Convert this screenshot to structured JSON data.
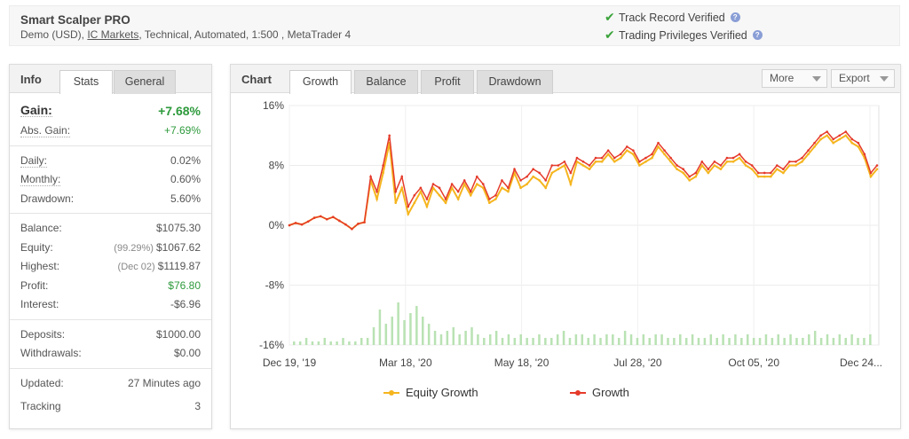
{
  "system": {
    "name": "Smart Scalper PRO",
    "meta_prefix": "Demo (USD), ",
    "broker": "IC Markets",
    "meta_suffix": ", Technical, Automated, 1:500 , MetaTrader 4"
  },
  "verification": {
    "track_record": "Track Record Verified",
    "trading_privileges": "Trading Privileges Verified",
    "help_glyph": "?"
  },
  "info_panel": {
    "title": "Info",
    "tabs": [
      "Stats",
      "General"
    ],
    "active_tab": "Stats",
    "stats": {
      "gain": {
        "label": "Gain:",
        "value": "+7.68%"
      },
      "abs_gain": {
        "label": "Abs. Gain:",
        "value": "+7.69%"
      },
      "daily": {
        "label": "Daily:",
        "value": "0.02%"
      },
      "monthly": {
        "label": "Monthly:",
        "value": "0.60%"
      },
      "drawdown": {
        "label": "Drawdown:",
        "value": "5.60%"
      },
      "balance": {
        "label": "Balance:",
        "value": "$1075.30"
      },
      "equity": {
        "label": "Equity:",
        "sub": "(99.29%)",
        "value": "$1067.62"
      },
      "highest": {
        "label": "Highest:",
        "sub": "(Dec 02)",
        "value": "$1119.87"
      },
      "profit": {
        "label": "Profit:",
        "value": "$76.80"
      },
      "interest": {
        "label": "Interest:",
        "value": "-$6.96"
      },
      "deposits": {
        "label": "Deposits:",
        "value": "$1000.00"
      },
      "withdrawals": {
        "label": "Withdrawals:",
        "value": "$0.00"
      },
      "updated": {
        "label": "Updated:",
        "value": "27 Minutes ago"
      },
      "tracking": {
        "label": "Tracking",
        "value": "3"
      }
    }
  },
  "chart_panel": {
    "title": "Chart",
    "tabs": [
      "Growth",
      "Balance",
      "Profit",
      "Drawdown"
    ],
    "active_tab": "Growth",
    "more_label": "More",
    "export_label": "Export"
  },
  "colors": {
    "equity": "#f5b51e",
    "growth": "#e53a2a",
    "bars": "#b9e2b3",
    "gain_green": "#2e9a3c"
  },
  "chart_data": {
    "type": "line",
    "x_tick_labels": [
      "Dec 19, '19",
      "Mar 18, '20",
      "May 18, '20",
      "Jul 28, '20",
      "Oct 05, '20",
      "Dec 24..."
    ],
    "y_tick_labels": [
      "16%",
      "8%",
      "0%",
      "-8%",
      "-16%"
    ],
    "ylim": [
      -16,
      16
    ],
    "grid": true,
    "legend_position": "bottom",
    "series": [
      {
        "name": "Equity Growth",
        "values": [
          0,
          0.3,
          0.1,
          0.5,
          1.0,
          1.2,
          0.8,
          1.1,
          0.6,
          0.1,
          -0.5,
          0.2,
          0.4,
          6.0,
          3.5,
          7.0,
          11.0,
          3.0,
          5.0,
          1.5,
          3.0,
          4.5,
          2.5,
          5.0,
          4.0,
          3.0,
          5.0,
          3.5,
          5.5,
          4.0,
          5.5,
          5.0,
          3.0,
          3.5,
          5.0,
          4.5,
          7.0,
          5.0,
          5.5,
          6.5,
          6.0,
          5.0,
          7.0,
          7.5,
          8.0,
          5.5,
          8.5,
          8.0,
          7.5,
          8.5,
          8.5,
          9.5,
          8.5,
          9.0,
          10.0,
          9.5,
          8.0,
          8.5,
          9.0,
          10.5,
          9.5,
          8.5,
          7.5,
          7.0,
          6.0,
          6.5,
          8.0,
          7.0,
          8.0,
          7.5,
          8.5,
          8.5,
          9.0,
          8.0,
          7.5,
          6.5,
          6.5,
          6.5,
          7.5,
          7.0,
          8.0,
          8.0,
          8.5,
          9.5,
          10.5,
          11.5,
          12.0,
          11.0,
          11.5,
          12.0,
          11.0,
          10.5,
          9.0,
          6.5,
          7.5
        ]
      },
      {
        "name": "Growth",
        "values": [
          0,
          0.3,
          0.1,
          0.5,
          1.0,
          1.2,
          0.8,
          1.1,
          0.6,
          0.1,
          -0.5,
          0.2,
          0.4,
          6.5,
          4.5,
          8.0,
          12.0,
          4.5,
          6.5,
          2.5,
          4.0,
          5.0,
          3.5,
          5.5,
          5.0,
          3.5,
          5.5,
          4.5,
          6.0,
          4.5,
          6.5,
          5.5,
          3.5,
          4.0,
          6.0,
          5.0,
          7.5,
          6.0,
          6.5,
          7.5,
          7.0,
          6.0,
          8.0,
          8.0,
          8.5,
          7.0,
          9.0,
          8.5,
          8.0,
          9.0,
          9.0,
          10.0,
          9.0,
          9.5,
          10.5,
          10.0,
          8.5,
          9.0,
          9.5,
          11.0,
          10.0,
          9.0,
          8.0,
          7.5,
          6.5,
          7.0,
          8.5,
          7.5,
          8.5,
          8.0,
          9.0,
          9.0,
          9.5,
          8.5,
          8.0,
          7.0,
          7.0,
          7.0,
          8.0,
          7.5,
          8.5,
          8.5,
          9.0,
          10.0,
          11.0,
          12.0,
          12.5,
          11.5,
          12.0,
          12.5,
          11.5,
          11.0,
          9.5,
          7.0,
          8.0
        ]
      }
    ],
    "volume_bars": [
      1,
      1,
      2,
      1,
      1,
      2,
      1,
      1,
      2,
      1,
      1,
      2,
      2,
      5,
      10,
      6,
      8,
      12,
      7,
      9,
      11,
      8,
      6,
      4,
      3,
      4,
      5,
      3,
      4,
      5,
      3,
      2,
      3,
      4,
      2,
      3,
      2,
      3,
      2,
      2,
      3,
      2,
      2,
      3,
      4,
      2,
      3,
      3,
      2,
      3,
      2,
      3,
      3,
      2,
      4,
      3,
      2,
      3,
      2,
      3,
      3,
      2,
      2,
      3,
      2,
      3,
      2,
      2,
      3,
      2,
      3,
      2,
      3,
      2,
      3,
      2,
      2,
      3,
      2,
      3,
      2,
      3,
      2,
      2,
      3,
      4,
      2,
      3,
      2,
      3,
      2,
      3,
      2,
      2,
      3
    ]
  }
}
